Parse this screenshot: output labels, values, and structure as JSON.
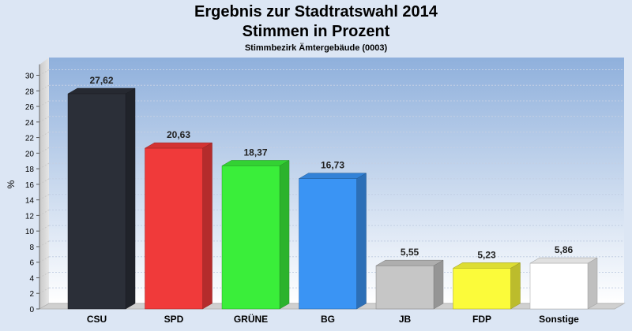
{
  "chart_data": {
    "type": "bar",
    "title": "Ergebnis zur Stadtratswahl 2014",
    "subtitle": "Stimmen in Prozent",
    "subsubtitle": "Stimmbezirk Ämtergebäude (0003)",
    "ylabel": "%",
    "xlabel": "",
    "ylim": [
      0,
      31
    ],
    "yticks": [
      0,
      2,
      4,
      6,
      8,
      10,
      12,
      14,
      16,
      18,
      20,
      22,
      24,
      26,
      28,
      30
    ],
    "grid": true,
    "categories": [
      "CSU",
      "SPD",
      "GRÜNE",
      "BG",
      "JB",
      "FDP",
      "Sonstige"
    ],
    "values": [
      27.62,
      20.63,
      18.37,
      16.73,
      5.55,
      5.23,
      5.86
    ],
    "value_labels": [
      "27,62",
      "20,63",
      "18,37",
      "16,73",
      "5,55",
      "5,23",
      "5,86"
    ],
    "colors": [
      "#2b2f38",
      "#f03a3a",
      "#3aee3a",
      "#3a94f4",
      "#c6c6c6",
      "#fbfb3a",
      "#ffffff"
    ]
  }
}
